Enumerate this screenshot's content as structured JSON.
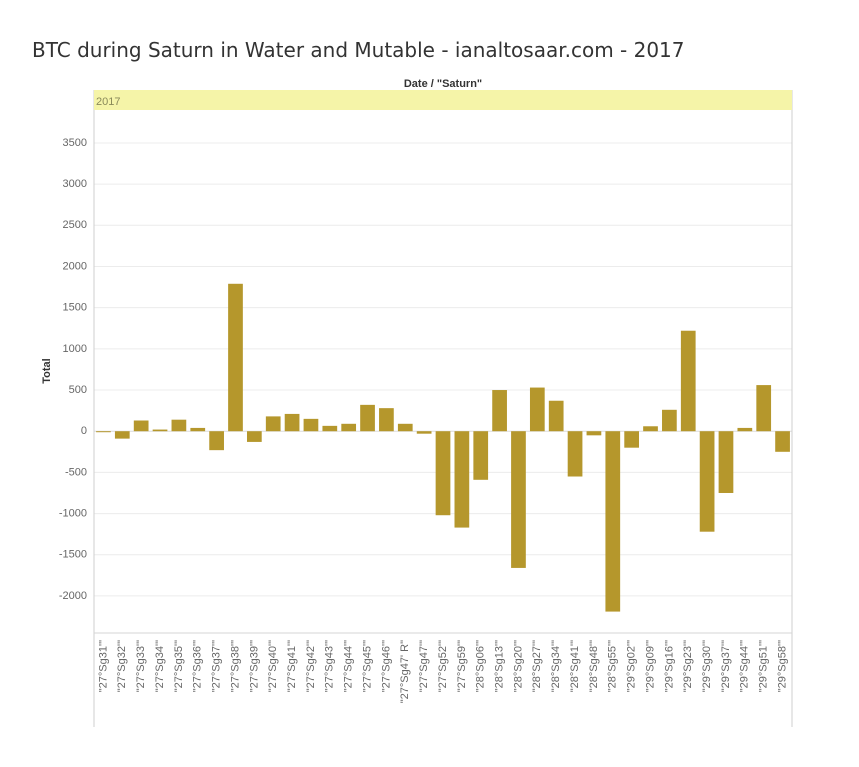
{
  "chart_data": {
    "type": "bar",
    "title": "BTC during Saturn in Water and Mutable - ianaltosaar.com - 2017",
    "column_header": "Date / \"Saturn\"",
    "pane_label": "2017",
    "ylabel": "Total",
    "ylim": [
      -2450,
      3900
    ],
    "yticks": [
      3500,
      3000,
      2500,
      2000,
      1500,
      1000,
      500,
      0,
      -500,
      -1000,
      -1500,
      -2000
    ],
    "grid": true,
    "bar_color": "#b5972c",
    "categories": [
      "\"27°Sg31'\"",
      "\"27°Sg32'\"",
      "\"27°Sg33'\"",
      "\"27°Sg34'\"",
      "\"27°Sg35'\"",
      "\"27°Sg36'\"",
      "\"27°Sg37'\"",
      "\"27°Sg38'\"",
      "\"27°Sg39'\"",
      "\"27°Sg40'\"",
      "\"27°Sg41'\"",
      "\"27°Sg42'\"",
      "\"27°Sg43'\"",
      "\"27°Sg44'\"",
      "\"27°Sg45'\"",
      "\"27°Sg46'\"",
      "\"27°Sg47' R\"",
      "\"27°Sg47'\"",
      "\"27°Sg52'\"",
      "\"27°Sg59'\"",
      "\"28°Sg06'\"",
      "\"28°Sg13'\"",
      "\"28°Sg20'\"",
      "\"28°Sg27'\"",
      "\"28°Sg34'\"",
      "\"28°Sg41'\"",
      "\"28°Sg48'\"",
      "\"28°Sg55'\"",
      "\"29°Sg02'\"",
      "\"29°Sg09'\"",
      "\"29°Sg16'\"",
      "\"29°Sg23'\"",
      "\"29°Sg30'\"",
      "\"29°Sg37'\"",
      "\"29°Sg44'\"",
      "\"29°Sg51'\"",
      "\"29°Sg58'\""
    ],
    "values": [
      -10,
      -90,
      130,
      20,
      140,
      40,
      -230,
      1790,
      -130,
      180,
      210,
      150,
      65,
      90,
      320,
      280,
      90,
      -30,
      -1020,
      -1170,
      -590,
      500,
      -1660,
      530,
      370,
      -550,
      -50,
      -2190,
      -200,
      60,
      260,
      1220,
      -1220,
      -750,
      40,
      560,
      -250
    ]
  }
}
